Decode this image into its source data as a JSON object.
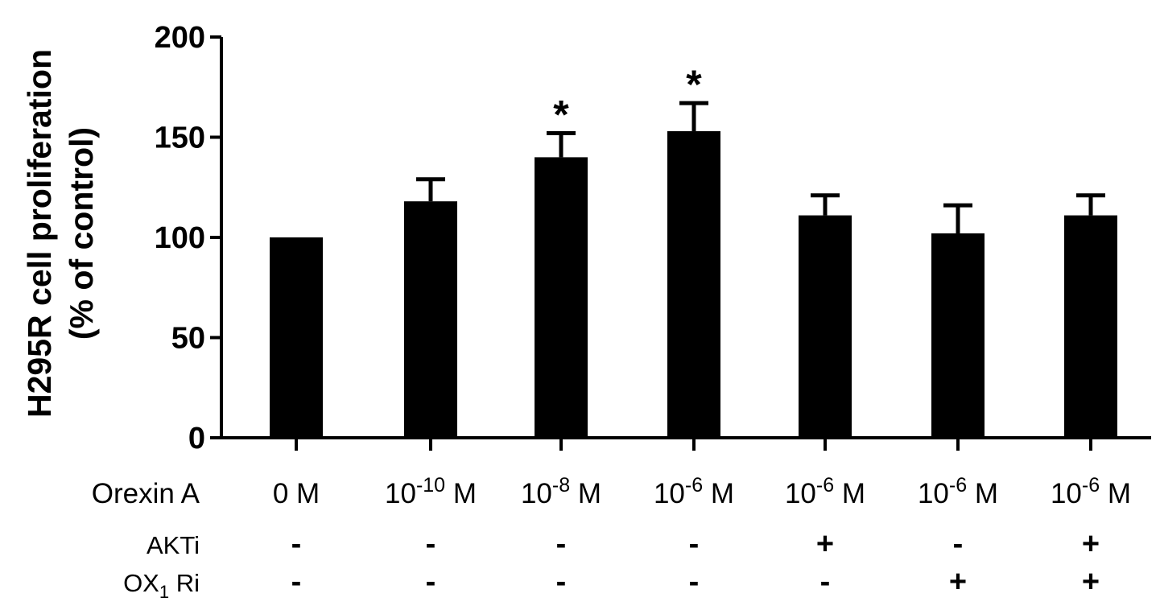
{
  "chart_data": {
    "type": "bar",
    "ylabel_line1": "H295R cell proliferation",
    "ylabel_line2": "(% of control)",
    "ylim": [
      0,
      200
    ],
    "yticks": [
      0,
      50,
      100,
      150,
      200
    ],
    "grid": false,
    "color": "#000000",
    "categories": [
      {
        "base": "0 M",
        "exp": "",
        "unit": ""
      },
      {
        "base": "10",
        "exp": "-10",
        "unit": " M"
      },
      {
        "base": "10",
        "exp": "-8",
        "unit": " M"
      },
      {
        "base": "10",
        "exp": "-6",
        "unit": " M"
      },
      {
        "base": "10",
        "exp": "-6",
        "unit": " M"
      },
      {
        "base": "10",
        "exp": "-6",
        "unit": " M"
      },
      {
        "base": "10",
        "exp": "-6",
        "unit": " M"
      }
    ],
    "values": [
      100,
      118,
      140,
      153,
      111,
      102,
      111
    ],
    "errors": [
      0,
      11,
      12,
      14,
      10,
      14,
      10
    ],
    "significance": [
      "",
      "",
      "*",
      "*",
      "",
      "",
      ""
    ],
    "rows": [
      {
        "label": "Orexin A"
      },
      {
        "label": "AKTi",
        "values": [
          "-",
          "-",
          "-",
          "-",
          "+",
          "-",
          "+"
        ]
      },
      {
        "label_base": "OX",
        "label_sub": "1",
        "label_rest": " Ri",
        "values": [
          "-",
          "-",
          "-",
          "-",
          "-",
          "+",
          "+"
        ]
      }
    ]
  }
}
